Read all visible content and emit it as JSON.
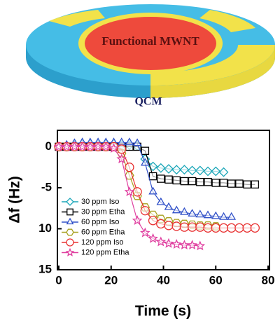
{
  "diagram": {
    "center_label": "Functional MWNT",
    "base_label": "QCM"
  },
  "chart_data": {
    "type": "scatter",
    "x_label": "Time (s)",
    "y_label": "Δf (Hz)",
    "xlim": [
      0,
      80
    ],
    "xticks": [
      0,
      20,
      40,
      60,
      80
    ],
    "ylim": [
      -15,
      2
    ],
    "yticks": [
      0,
      -5,
      {
        "value": -10,
        "label": "10"
      },
      {
        "value": -15,
        "label": "15"
      }
    ],
    "x": [
      0,
      3,
      6,
      9,
      12,
      15,
      18,
      21,
      24,
      27,
      30,
      33,
      36,
      39,
      42,
      45,
      48,
      51,
      54,
      57,
      60,
      63,
      66,
      69,
      72,
      75
    ],
    "series": [
      {
        "name": "30 ppm Iso",
        "color": "#1aa6b8",
        "marker": "diamond",
        "values": [
          0,
          0,
          0.2,
          0.3,
          0.3,
          0.3,
          0.3,
          0.3,
          0.2,
          0.2,
          0.1,
          -1.5,
          -2.4,
          -2.6,
          -2.7,
          -2.8,
          -2.8,
          -2.9,
          -2.9,
          -3,
          -3,
          -3.1,
          null,
          null,
          null,
          null
        ]
      },
      {
        "name": "30 ppm Etha",
        "color": "#000000",
        "marker": "square",
        "values": [
          0,
          0,
          0,
          0,
          0,
          0,
          0,
          0,
          0,
          0,
          0,
          -0.5,
          -3.6,
          -3.9,
          -4,
          -4.1,
          -4.2,
          -4.2,
          -4.3,
          -4.3,
          -4.4,
          -4.4,
          -4.5,
          -4.5,
          -4.6,
          -4.6
        ]
      },
      {
        "name": "60 ppm Iso",
        "color": "#3050c8",
        "marker": "triangle",
        "values": [
          0,
          0.2,
          0.4,
          0.5,
          0.5,
          0.5,
          0.5,
          0.5,
          0.5,
          0.5,
          0.4,
          -2,
          -5.5,
          -6.8,
          -7.4,
          -7.8,
          -8,
          -8.2,
          -8.3,
          -8.4,
          -8.5,
          -8.6,
          -8.6,
          null,
          null,
          null
        ]
      },
      {
        "name": "60 ppm Etha",
        "color": "#a8a020",
        "marker": "hexagon",
        "values": [
          0,
          0,
          0,
          0,
          0,
          0,
          0,
          0,
          -0.8,
          -3.5,
          -6,
          -7.4,
          -8.3,
          -8.8,
          -9.1,
          -9.3,
          -9.4,
          -9.5,
          -9.6,
          -9.6,
          -9.7,
          null,
          null,
          null,
          null,
          null
        ]
      },
      {
        "name": "120 ppm Iso",
        "color": "#e83030",
        "marker": "circle",
        "values": [
          0,
          0,
          0,
          0,
          0,
          0,
          0,
          0,
          -0.3,
          -2.5,
          -5.5,
          -7.8,
          -9,
          -9.4,
          -9.6,
          -9.7,
          -9.8,
          -9.8,
          -9.8,
          -9.9,
          -9.9,
          -9.9,
          -9.9,
          -9.9,
          -9.9,
          -9.9
        ]
      },
      {
        "name": "120 ppm Etha",
        "color": "#e040a0",
        "marker": "star",
        "values": [
          0,
          0,
          0,
          0,
          0,
          0,
          0,
          -0.2,
          -1.5,
          -5.5,
          -9,
          -10.5,
          -11.2,
          -11.6,
          -11.8,
          -11.9,
          -12,
          -12,
          -12.1,
          null,
          null,
          null,
          null,
          null,
          null,
          null
        ]
      }
    ]
  }
}
